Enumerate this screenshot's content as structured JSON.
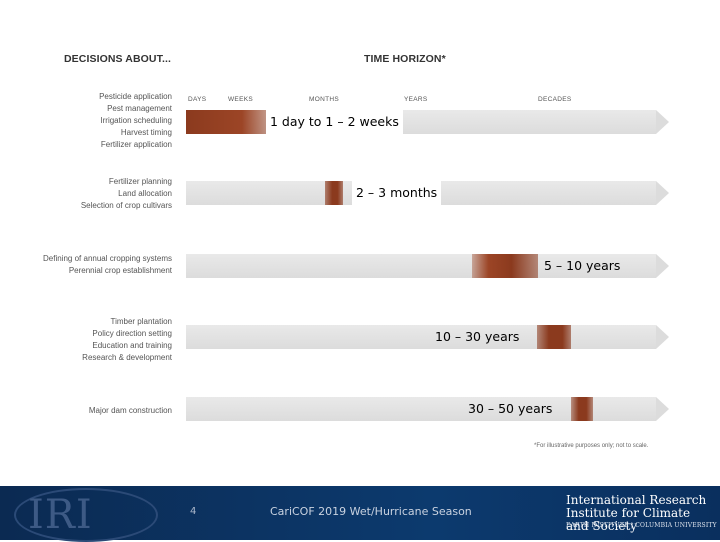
{
  "header": {
    "decisions": "DECISIONS ABOUT...",
    "time_horizon": "TIME HORIZON*"
  },
  "ticks": [
    "DAYS",
    "WEEKS",
    "MONTHS",
    "YEARS",
    "DECADES"
  ],
  "groups": [
    {
      "items": [
        "Pesticide application",
        "Pest management",
        "Irrigation scheduling",
        "Harvest timing",
        "Fertilizer application"
      ],
      "range_label": "1 day to 1 – 2 weeks"
    },
    {
      "items": [
        "Fertilizer planning",
        "Land allocation",
        "Selection of crop cultivars"
      ],
      "range_label": "2 – 3 months"
    },
    {
      "items": [
        "Defining of annual cropping systems",
        "Perennial crop establishment"
      ],
      "range_label": "5 – 10 years"
    },
    {
      "items": [
        "Timber plantation",
        "Policy direction setting",
        "Education and training",
        "Research & development"
      ],
      "range_label": "10 – 30 years"
    },
    {
      "items": [
        "Major dam construction"
      ],
      "range_label": "30 – 50 years"
    }
  ],
  "footnote": "*For illustrative purposes only; not to scale.",
  "colors": {
    "segment": "#8b3a1e",
    "track": "#dcdcdc",
    "footer": "#0c3a6e"
  },
  "footer": {
    "logo": "IRI",
    "slide_number": "4",
    "title": "CariCOF 2019 Wet/Hurricane Season",
    "institute": "International Research Institute for Climate and Society",
    "institute_sub": "EARTH INSTITUTE | COLUMBIA UNIVERSITY"
  }
}
